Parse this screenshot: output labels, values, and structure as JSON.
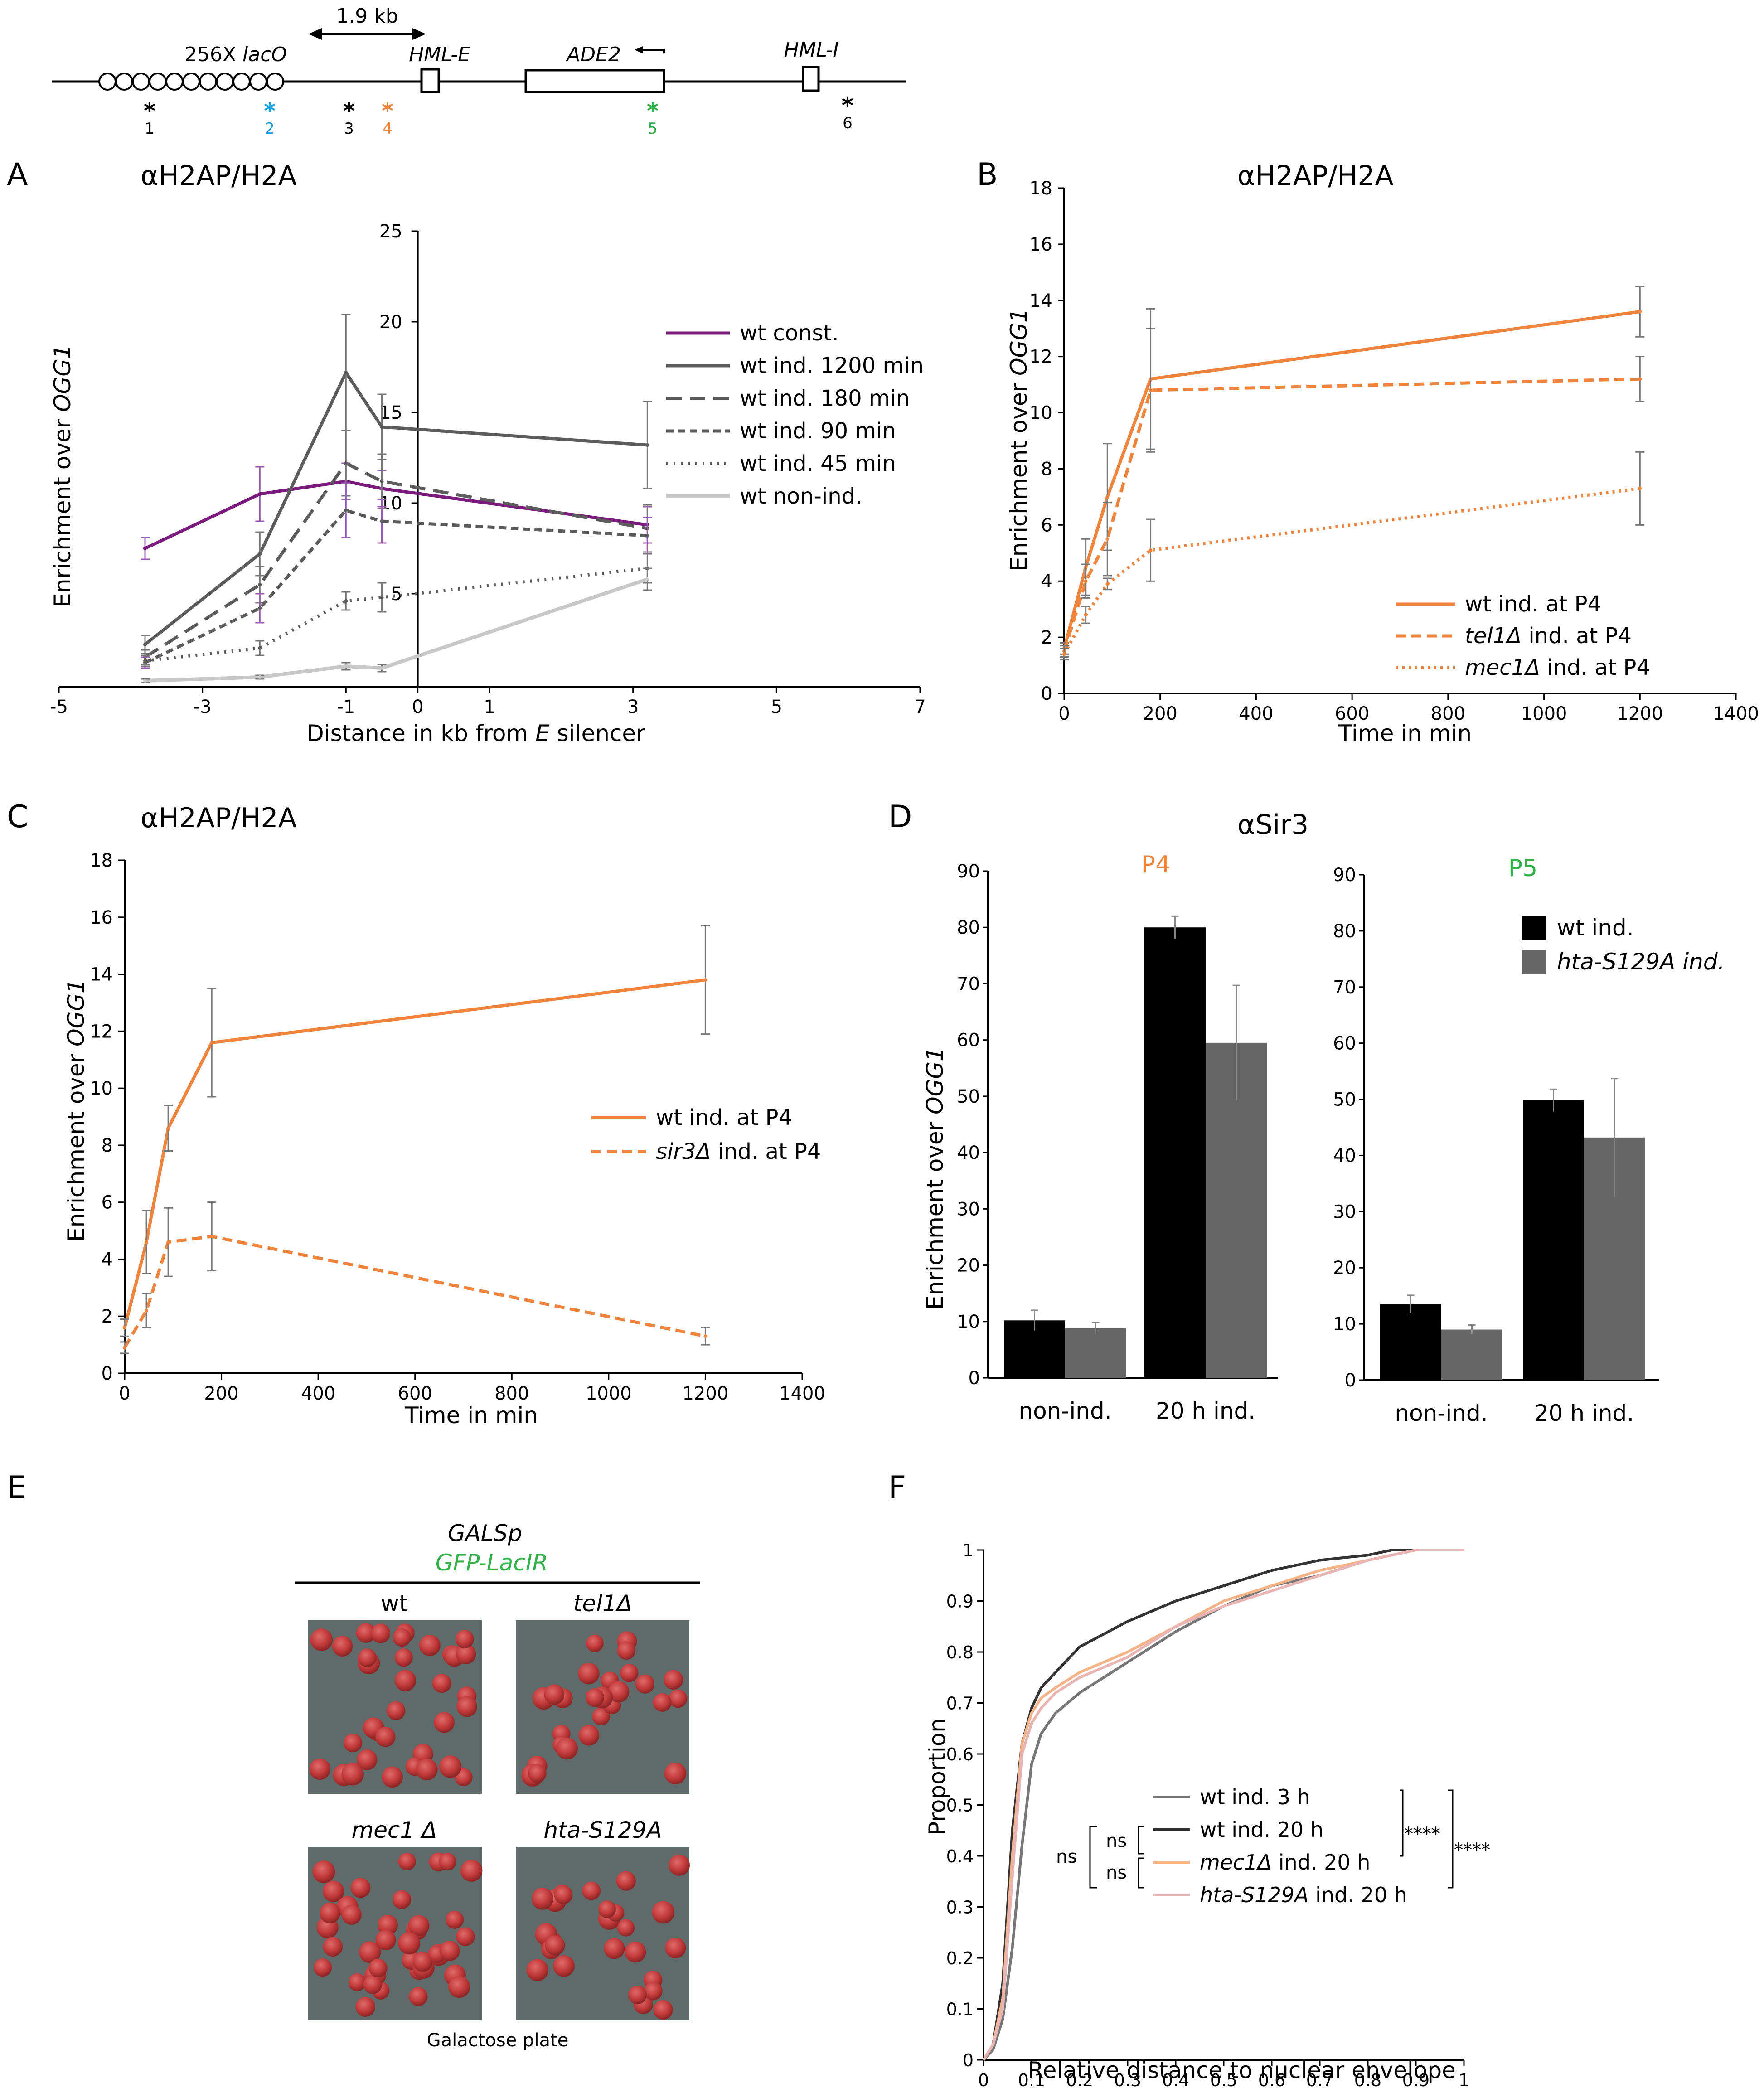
{
  "colors": {
    "purple": "#7b1b7e",
    "gray_dark": "#5c5c5c",
    "gray_light": "#c8c8c8",
    "orange": "#f0843c",
    "orange_light": "#f5b487",
    "pink_light": "#e8b4b4",
    "blue": "#1ba1e2",
    "green": "#33b24a",
    "black": "#000000",
    "bar_gray": "#666666",
    "err_purple": "#9b59b6"
  },
  "schematic": {
    "scale_label": "1.9 kb",
    "lacO_prefix": "256X",
    "lacO_label": "lacO",
    "hml_e": "HML-E",
    "ade2": "ADE2",
    "hml_i": "HML-I",
    "probe_mark": "*",
    "probes": [
      "1",
      "2",
      "3",
      "4",
      "5",
      "6"
    ]
  },
  "panel_labels": {
    "a": "A",
    "b": "B",
    "c": "C",
    "d": "D",
    "e": "E",
    "f": "F"
  },
  "chart_data": [
    {
      "id": "A",
      "type": "line",
      "title_symbol": "α",
      "title": "H2AP/H2A",
      "xlabel_prefix": "Distance in kb from",
      "xlabel_italic": "E",
      "xlabel_suffix": "silencer",
      "ylabel_prefix": "Enrichment over",
      "ylabel_italic": "OGG1",
      "xlim": [
        -5,
        7
      ],
      "ylim": [
        0,
        25
      ],
      "xticks": [
        -5,
        -3,
        -1,
        0,
        1,
        3,
        5,
        7
      ],
      "yticks": [
        5,
        10,
        15,
        20,
        25
      ],
      "x": [
        -3.8,
        -2.2,
        -1.0,
        -0.5,
        3.2
      ],
      "series": [
        {
          "name": "wt const.",
          "values": [
            7.5,
            10.5,
            11.2,
            10.8,
            8.8
          ],
          "errors": [
            0.6,
            1.5,
            1.0,
            1.0,
            1.0
          ]
        },
        {
          "name": "wt ind. 1200 min",
          "values": [
            2.2,
            7.2,
            17.2,
            14.2,
            13.2
          ],
          "errors": [
            0.5,
            1.2,
            3.2,
            1.8,
            2.4
          ]
        },
        {
          "name": "wt ind. 180 min",
          "values": [
            1.5,
            5.5,
            12.2,
            11.2,
            8.6
          ],
          "errors": [
            0.4,
            1.0,
            1.8,
            1.5,
            1.3
          ]
        },
        {
          "name": "wt ind. 90 min",
          "values": [
            1.2,
            4.2,
            9.6,
            9.0,
            8.2
          ],
          "errors": [
            0.3,
            0.8,
            1.5,
            1.2,
            1.0
          ]
        },
        {
          "name": "wt ind. 45 min",
          "values": [
            1.3,
            2.0,
            4.6,
            4.8,
            6.4
          ],
          "errors": [
            0.3,
            0.4,
            0.5,
            0.8,
            0.8
          ]
        },
        {
          "name": "wt non-ind.",
          "values": [
            0.2,
            0.4,
            1.0,
            0.9,
            5.8
          ],
          "errors": [
            0.1,
            0.1,
            0.2,
            0.2,
            0.6
          ]
        }
      ]
    },
    {
      "id": "B",
      "type": "line",
      "title_symbol": "α",
      "title": "H2AP/H2A",
      "xlabel": "Time in min",
      "ylabel_prefix": "Enrichment over",
      "ylabel_italic": "OGG1",
      "xlim": [
        0,
        1400
      ],
      "ylim": [
        0,
        18
      ],
      "xticks": [
        0,
        200,
        400,
        600,
        800,
        1000,
        1200,
        1400
      ],
      "yticks": [
        0,
        2,
        4,
        6,
        8,
        10,
        12,
        14,
        16,
        18
      ],
      "x": [
        0,
        45,
        90,
        180,
        1200
      ],
      "series": [
        {
          "name_italic": "",
          "name": "wt ind. at P4",
          "values": [
            1.6,
            4.5,
            7.0,
            11.2,
            13.6
          ],
          "errors": [
            0.2,
            1.0,
            1.9,
            2.5,
            0.9
          ]
        },
        {
          "name_italic": "tel1Δ",
          "name": " ind. at P4",
          "values": [
            1.5,
            4.0,
            5.5,
            10.8,
            11.2
          ],
          "errors": [
            0.2,
            0.6,
            1.3,
            2.2,
            0.8
          ]
        },
        {
          "name_italic": "mec1Δ",
          "name": " ind. at P4",
          "values": [
            1.4,
            2.8,
            3.9,
            5.1,
            7.3
          ],
          "errors": [
            0.2,
            0.3,
            0.2,
            1.1,
            1.3
          ]
        }
      ]
    },
    {
      "id": "C",
      "type": "line",
      "title_symbol": "α",
      "title": "H2AP/H2A",
      "xlabel": "Time in min",
      "ylabel_prefix": "Enrichment over",
      "ylabel_italic": "OGG1",
      "xlim": [
        0,
        1400
      ],
      "ylim": [
        0,
        18
      ],
      "xticks": [
        0,
        200,
        400,
        600,
        800,
        1000,
        1200,
        1400
      ],
      "yticks": [
        0,
        2,
        4,
        6,
        8,
        10,
        12,
        14,
        16,
        18
      ],
      "x": [
        0,
        45,
        90,
        180,
        1200
      ],
      "series": [
        {
          "name_italic": "",
          "name": "wt ind. at P4",
          "values": [
            1.6,
            4.6,
            8.6,
            11.6,
            13.8
          ],
          "errors": [
            0.3,
            1.1,
            0.8,
            1.9,
            1.9
          ]
        },
        {
          "name_italic": "sir3Δ",
          "name": " ind. at P4",
          "values": [
            0.9,
            2.2,
            4.6,
            4.8,
            1.3
          ],
          "errors": [
            0.2,
            0.6,
            1.2,
            1.2,
            0.3
          ]
        }
      ]
    },
    {
      "id": "D",
      "type": "bar",
      "title_symbol": "α",
      "title": "Sir3",
      "ylabel_prefix": "Enrichment over",
      "ylabel_italic": "OGG1",
      "ylim": [
        0,
        90
      ],
      "yticks": [
        0,
        10,
        20,
        30,
        40,
        50,
        60,
        70,
        80,
        90
      ],
      "categories": [
        "non-ind.",
        "20 h ind."
      ],
      "series_names": [
        "wt ind.",
        "hta-S129A ind."
      ],
      "subplots": [
        {
          "name": "P4",
          "series": [
            {
              "values": [
                10.2,
                80.0
              ],
              "errors": [
                1.8,
                2.0
              ]
            },
            {
              "values": [
                8.8,
                59.5
              ],
              "errors": [
                1.0,
                10.2
              ]
            }
          ]
        },
        {
          "name": "P5",
          "series": [
            {
              "values": [
                13.5,
                49.8
              ],
              "errors": [
                1.6,
                2.0
              ]
            },
            {
              "values": [
                9.0,
                43.2
              ],
              "errors": [
                0.8,
                10.5
              ]
            }
          ]
        }
      ]
    },
    {
      "id": "F",
      "type": "line",
      "xlabel": "Relative distance to nuclear envelope",
      "ylabel": "Proportion",
      "xlim": [
        0,
        1
      ],
      "ylim": [
        0,
        1
      ],
      "xticks": [
        "0",
        "0.1",
        "0.2",
        "0.3",
        "0.4",
        "0.5",
        "0.6",
        "0.7",
        "0.8",
        "0.9",
        "1"
      ],
      "yticks": [
        "0",
        "0.1",
        "0.2",
        "0.3",
        "0.4",
        "0.5",
        "0.6",
        "0.7",
        "0.8",
        "0.9",
        "1"
      ],
      "series": [
        {
          "name": "wt ind. 3 h",
          "x": [
            0,
            0.02,
            0.04,
            0.06,
            0.08,
            0.1,
            0.12,
            0.15,
            0.2,
            0.3,
            0.4,
            0.5,
            0.6,
            0.7,
            0.8,
            0.85,
            0.9,
            0.95,
            1
          ],
          "y": [
            0,
            0.02,
            0.08,
            0.22,
            0.42,
            0.58,
            0.64,
            0.68,
            0.72,
            0.78,
            0.84,
            0.89,
            0.93,
            0.95,
            0.98,
            0.99,
            1.0,
            1.0,
            1.0
          ]
        },
        {
          "name": "wt ind. 20 h",
          "x": [
            0,
            0.02,
            0.04,
            0.06,
            0.08,
            0.1,
            0.12,
            0.15,
            0.2,
            0.3,
            0.4,
            0.5,
            0.6,
            0.7,
            0.8,
            0.85,
            0.9,
            0.95,
            1
          ],
          "y": [
            0,
            0.03,
            0.15,
            0.45,
            0.62,
            0.69,
            0.73,
            0.76,
            0.81,
            0.86,
            0.9,
            0.93,
            0.96,
            0.98,
            0.99,
            1.0,
            1.0,
            1.0,
            1.0
          ]
        },
        {
          "name_italic": "mec1Δ",
          "name": " ind. 20 h",
          "x": [
            0,
            0.02,
            0.04,
            0.06,
            0.08,
            0.1,
            0.12,
            0.15,
            0.2,
            0.3,
            0.4,
            0.5,
            0.6,
            0.7,
            0.8,
            0.85,
            0.9,
            0.95,
            1
          ],
          "y": [
            0,
            0.03,
            0.12,
            0.4,
            0.62,
            0.68,
            0.71,
            0.73,
            0.76,
            0.8,
            0.85,
            0.9,
            0.93,
            0.96,
            0.98,
            0.99,
            1.0,
            1.0,
            1.0
          ]
        },
        {
          "name_italic": "hta-S129A",
          "name": " ind. 20 h",
          "x": [
            0,
            0.02,
            0.04,
            0.06,
            0.08,
            0.1,
            0.12,
            0.15,
            0.2,
            0.3,
            0.4,
            0.5,
            0.6,
            0.7,
            0.8,
            0.85,
            0.9,
            0.95,
            1
          ],
          "y": [
            0,
            0.03,
            0.1,
            0.36,
            0.6,
            0.66,
            0.69,
            0.72,
            0.75,
            0.79,
            0.85,
            0.89,
            0.92,
            0.95,
            0.98,
            0.99,
            1.0,
            1.0,
            1.0
          ]
        }
      ],
      "annotations": {
        "ns": "ns",
        "stars": "****"
      }
    }
  ],
  "panel_e": {
    "header_line1": "GALSp",
    "header_line2": "GFP-LacIR",
    "strains": [
      "wt",
      "tel1Δ",
      "mec1  Δ",
      "hta-S129A"
    ],
    "caption": "Galactose plate"
  }
}
